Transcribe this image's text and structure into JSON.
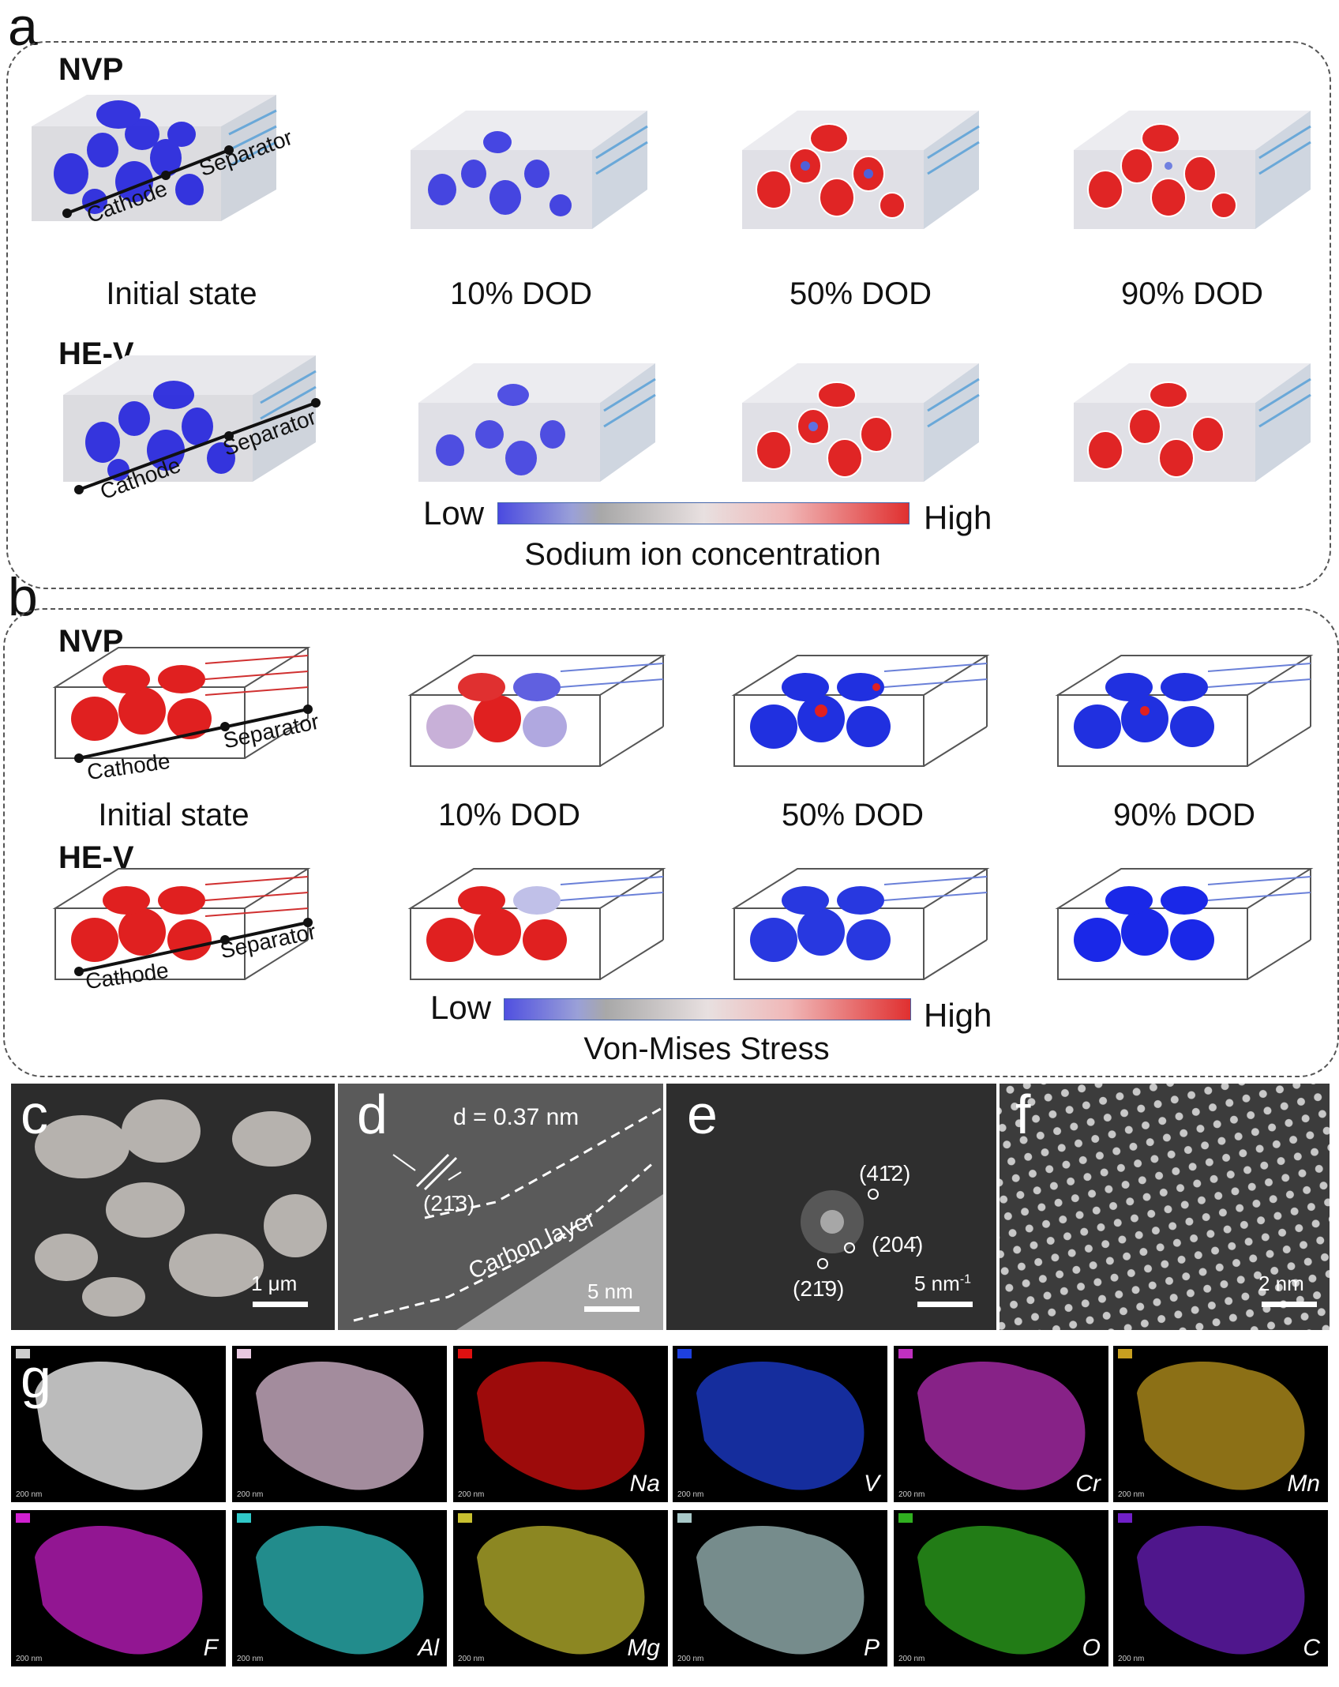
{
  "panel_a": {
    "letter": "a",
    "rows": [
      {
        "material": "NVP",
        "cathode": "Cathode",
        "separator": "Separator"
      },
      {
        "material": "HE-V",
        "cathode": "Cathode",
        "separator": "Separator"
      }
    ],
    "states": [
      "Initial state",
      "10% DOD",
      "50% DOD",
      "90% DOD"
    ],
    "colorbar": {
      "low": "Low",
      "high": "High",
      "title": "Sodium ion concentration"
    }
  },
  "panel_b": {
    "letter": "b",
    "rows": [
      {
        "material": "NVP",
        "cathode": "Cathode",
        "separator": "Separator"
      },
      {
        "material": "HE-V",
        "cathode": "Cathode",
        "separator": "Separator"
      }
    ],
    "states": [
      "Initial state",
      "10% DOD",
      "50% DOD",
      "90% DOD"
    ],
    "colorbar": {
      "low": "Low",
      "high": "High",
      "title": "Von-Mises Stress"
    }
  },
  "panel_c": {
    "letter": "c",
    "scale": "1 μm"
  },
  "panel_d": {
    "letter": "d",
    "d_spacing": "d = 0.37 nm",
    "plane": "(21̄3)",
    "layer": "Carbon layer",
    "scale": "5 nm"
  },
  "panel_e": {
    "letter": "e",
    "spots": [
      "(41̄2)",
      "(204̄)",
      "(21̄9)"
    ],
    "scale": "5 nm",
    "scale_sup": "-1"
  },
  "panel_f": {
    "letter": "f",
    "scale": "2 nm"
  },
  "panel_g": {
    "letter": "g",
    "maps": [
      {
        "element": "",
        "color": "#cfcfcf"
      },
      {
        "element": "",
        "color": "#e8c8e0"
      },
      {
        "element": "Na",
        "color": "#e01010"
      },
      {
        "element": "V",
        "color": "#1e40e0"
      },
      {
        "element": "Cr",
        "color": "#c030c0"
      },
      {
        "element": "Mn",
        "color": "#c8a020"
      },
      {
        "element": "F",
        "color": "#d020d0"
      },
      {
        "element": "Al",
        "color": "#30c8c8"
      },
      {
        "element": "Mg",
        "color": "#c8c030"
      },
      {
        "element": "P",
        "color": "#a8c8c8"
      },
      {
        "element": "O",
        "color": "#30b020"
      },
      {
        "element": "C",
        "color": "#7020c8"
      }
    ],
    "scale": "200 nm"
  },
  "colors": {
    "blue": "#2020e0",
    "red": "#e02020"
  }
}
